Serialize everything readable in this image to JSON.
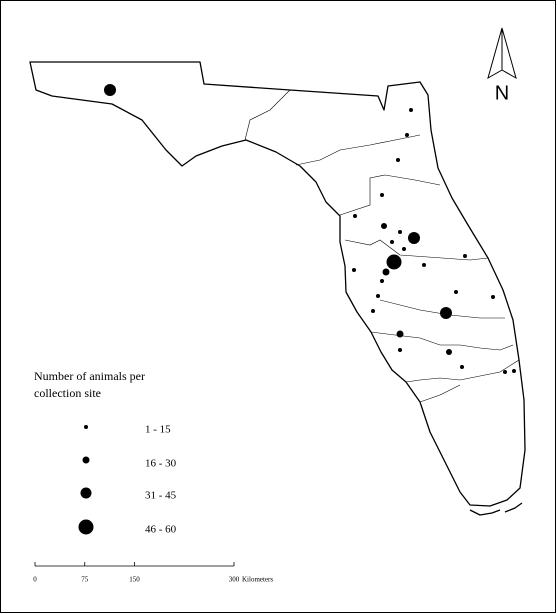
{
  "map": {
    "north_label": "N",
    "legend": {
      "title_lines": [
        "Number of animals per",
        "collection site"
      ],
      "classes": [
        "1 - 15",
        "16 - 30",
        "31 - 45",
        "46 - 60"
      ]
    },
    "scale_bar": {
      "ticks": [
        0,
        75,
        150,
        300
      ],
      "unit": "Kilometers"
    }
  }
}
